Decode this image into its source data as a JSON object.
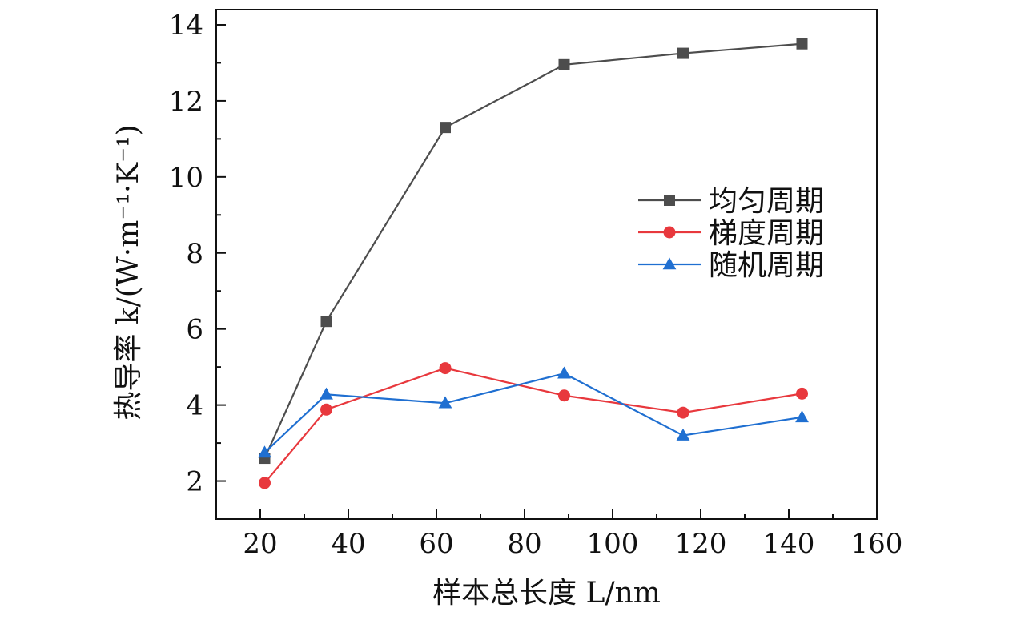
{
  "chart_data": {
    "type": "line",
    "xlabel": "样本总长度 L/nm",
    "ylabel": "热导率 k/(W·m⁻¹·K⁻¹)",
    "xlim": [
      10,
      160
    ],
    "ylim": [
      1,
      14.4
    ],
    "x_ticks": [
      20,
      40,
      60,
      80,
      100,
      120,
      140,
      160
    ],
    "y_ticks": [
      2,
      4,
      6,
      8,
      10,
      12,
      14
    ],
    "x_tick_labels": [
      "20",
      "40",
      "60",
      "80",
      "100",
      "120",
      "140",
      "160"
    ],
    "y_tick_labels": [
      "2",
      "4",
      "6",
      "8",
      "10",
      "12",
      "14"
    ],
    "legend_position": "center-right",
    "grid": false,
    "series": [
      {
        "name": "均匀周期",
        "color": "#4d4d4d",
        "marker": "square",
        "x": [
          21,
          35,
          62,
          89,
          116,
          143
        ],
        "y": [
          2.6,
          6.2,
          11.3,
          12.95,
          13.25,
          13.5
        ]
      },
      {
        "name": "梯度周期",
        "color": "#e8383d",
        "marker": "circle",
        "x": [
          21,
          35,
          62,
          89,
          116,
          143
        ],
        "y": [
          1.95,
          3.88,
          4.97,
          4.25,
          3.8,
          4.3
        ]
      },
      {
        "name": "随机周期",
        "color": "#1f6fd1",
        "marker": "triangle",
        "x": [
          21,
          35,
          62,
          89,
          116,
          143
        ],
        "y": [
          2.75,
          4.28,
          4.05,
          4.83,
          3.2,
          3.68
        ]
      }
    ]
  }
}
